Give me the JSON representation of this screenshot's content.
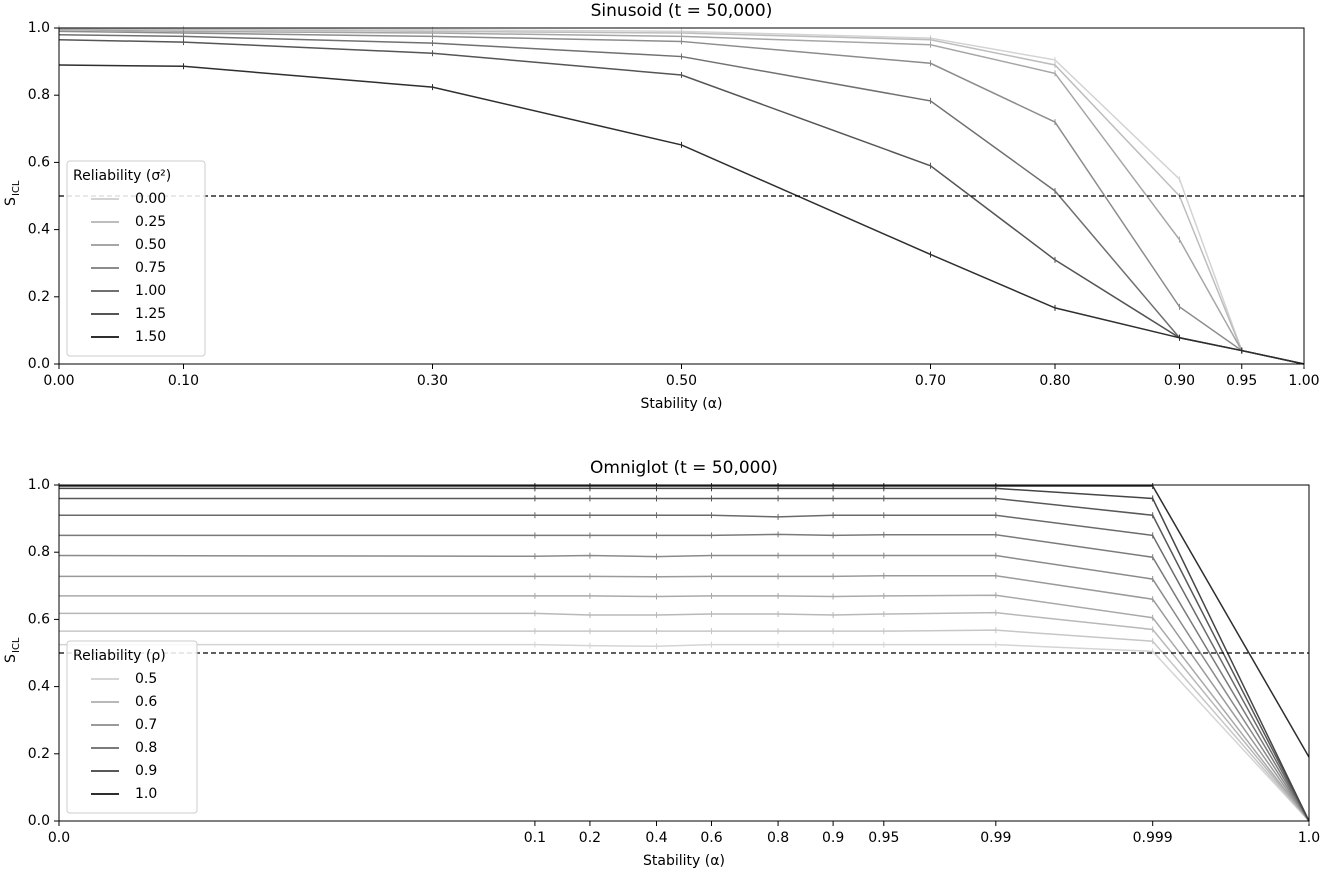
{
  "chart_data": [
    {
      "type": "line",
      "title": "Sinusoid (t = 50,000)",
      "xlabel": "Stability (α)",
      "ylabel": "S",
      "ylabel_sub": "ICL",
      "x": [
        0,
        0.1,
        0.3,
        0.5,
        0.7,
        0.8,
        0.9,
        0.95,
        1.0
      ],
      "xlim": [
        0,
        1
      ],
      "xticks": [
        {
          "value": 0,
          "label": "0.00"
        },
        {
          "value": 0.1,
          "label": "0.10"
        },
        {
          "value": 0.3,
          "label": "0.30"
        },
        {
          "value": 0.5,
          "label": "0.50"
        },
        {
          "value": 0.7,
          "label": "0.70"
        },
        {
          "value": 0.8,
          "label": "0.80"
        },
        {
          "value": 0.9,
          "label": "0.90"
        },
        {
          "value": 0.95,
          "label": "0.95"
        },
        {
          "value": 1,
          "label": "1.00"
        }
      ],
      "ylim": [
        0,
        1
      ],
      "yticks": [
        {
          "value": 0,
          "label": "0.0"
        },
        {
          "value": 0.2,
          "label": "0.2"
        },
        {
          "value": 0.4,
          "label": "0.4"
        },
        {
          "value": 0.6,
          "label": "0.6"
        },
        {
          "value": 0.8,
          "label": "0.8"
        },
        {
          "value": 1,
          "label": "1.0"
        }
      ],
      "hline": 0.5,
      "legend_title": "Reliability (σ²)",
      "legend": "lower left",
      "series": [
        {
          "name": "0.00",
          "color": "#d3d3d3",
          "values": [
            1.0,
            0.998,
            0.995,
            0.99,
            0.97,
            0.905,
            0.55,
            0.04,
            0
          ]
        },
        {
          "name": "0.25",
          "color": "#bdbdbd",
          "values": [
            0.998,
            0.995,
            0.99,
            0.985,
            0.965,
            0.89,
            0.5,
            0.04,
            0
          ]
        },
        {
          "name": "0.50",
          "color": "#a6a6a6",
          "values": [
            0.995,
            0.99,
            0.985,
            0.975,
            0.95,
            0.865,
            0.37,
            0.04,
            0
          ]
        },
        {
          "name": "0.75",
          "color": "#8c8c8c",
          "values": [
            0.99,
            0.985,
            0.975,
            0.96,
            0.895,
            0.72,
            0.17,
            0.04,
            0
          ]
        },
        {
          "name": "1.00",
          "color": "#707070",
          "values": [
            0.98,
            0.975,
            0.955,
            0.915,
            0.783,
            0.515,
            0.078,
            0.04,
            0
          ]
        },
        {
          "name": "1.25",
          "color": "#555555",
          "values": [
            0.965,
            0.958,
            0.925,
            0.86,
            0.59,
            0.31,
            0.078,
            0.04,
            0
          ]
        },
        {
          "name": "1.50",
          "color": "#2e2e2e",
          "values": [
            0.89,
            0.886,
            0.824,
            0.652,
            0.326,
            0.167,
            0.078,
            0.04,
            0
          ]
        }
      ]
    },
    {
      "type": "line",
      "title": "Omniglot (t = 50,000)",
      "xlabel": "Stability (α)",
      "ylabel": "S",
      "ylabel_sub": "ICL",
      "xscale": "logit",
      "x": [
        0.0001,
        0.1,
        0.2,
        0.4,
        0.6,
        0.8,
        0.9,
        0.95,
        0.99,
        0.999,
        0.9999
      ],
      "xlim": [
        0.0001,
        0.9999
      ],
      "xticks": [
        {
          "value": 0.0001,
          "label": "0.0"
        },
        0.1,
        0.2,
        0.4,
        0.6,
        0.8,
        0.9,
        0.95,
        0.99,
        0.999,
        {
          "value": 0.9999,
          "label": "1.0"
        }
      ],
      "ylim": [
        0,
        1
      ],
      "yticks": [
        {
          "value": 0,
          "label": "0.0"
        },
        {
          "value": 0.2,
          "label": "0.2"
        },
        {
          "value": 0.4,
          "label": "0.4"
        },
        {
          "value": 0.6,
          "label": "0.6"
        },
        {
          "value": 0.8,
          "label": "0.8"
        },
        {
          "value": 1,
          "label": "1.0"
        }
      ],
      "hline": 0.5,
      "legend_title": "Reliability (ρ)",
      "legend": "lower left",
      "series": [
        {
          "name": "0.5",
          "color": "#d4d4d4",
          "values": [
            0.525,
            0.525,
            0.522,
            0.52,
            0.525,
            0.525,
            0.525,
            0.525,
            0.525,
            0.505,
            0
          ]
        },
        {
          "color": "#c6c6c6",
          "values": [
            0.565,
            0.565,
            0.565,
            0.565,
            0.565,
            0.565,
            0.565,
            0.565,
            0.568,
            0.535,
            0
          ]
        },
        {
          "name": "0.6",
          "color": "#b8b8b8",
          "values": [
            0.618,
            0.618,
            0.613,
            0.613,
            0.616,
            0.616,
            0.613,
            0.616,
            0.62,
            0.57,
            0
          ]
        },
        {
          "color": "#a9a9a9",
          "values": [
            0.67,
            0.67,
            0.67,
            0.668,
            0.67,
            0.67,
            0.668,
            0.67,
            0.672,
            0.605,
            0
          ]
        },
        {
          "name": "0.7",
          "color": "#9a9a9a",
          "values": [
            0.728,
            0.728,
            0.728,
            0.727,
            0.728,
            0.728,
            0.728,
            0.73,
            0.73,
            0.66,
            0
          ]
        },
        {
          "color": "#8a8a8a",
          "values": [
            0.79,
            0.788,
            0.79,
            0.787,
            0.79,
            0.79,
            0.79,
            0.79,
            0.79,
            0.72,
            0
          ]
        },
        {
          "name": "0.8",
          "color": "#7a7a7a",
          "values": [
            0.85,
            0.85,
            0.85,
            0.85,
            0.85,
            0.853,
            0.85,
            0.852,
            0.852,
            0.785,
            0
          ]
        },
        {
          "color": "#6a6a6a",
          "values": [
            0.91,
            0.91,
            0.91,
            0.91,
            0.91,
            0.905,
            0.91,
            0.91,
            0.91,
            0.85,
            0
          ]
        },
        {
          "name": "0.9",
          "color": "#585858",
          "values": [
            0.96,
            0.96,
            0.96,
            0.96,
            0.96,
            0.96,
            0.96,
            0.96,
            0.96,
            0.91,
            0
          ]
        },
        {
          "color": "#454545",
          "values": [
            0.99,
            0.99,
            0.99,
            0.99,
            0.99,
            0.99,
            0.99,
            0.99,
            0.99,
            0.96,
            0
          ]
        },
        {
          "name": "1.0",
          "color": "#2e2e2e",
          "values": [
            0.997,
            0.997,
            0.997,
            0.997,
            0.997,
            0.997,
            0.997,
            0.997,
            0.997,
            0.997,
            0.19
          ]
        }
      ]
    }
  ]
}
